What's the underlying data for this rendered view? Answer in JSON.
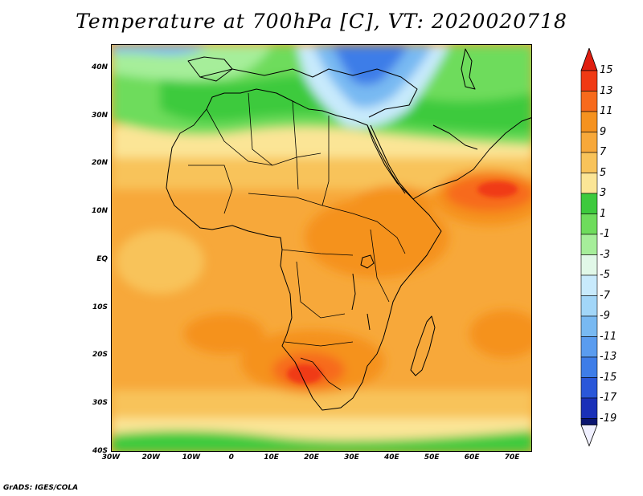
{
  "title": "Temperature at 700hPa [C], VT: 2020020718",
  "credit": "GrADS: IGES/COLA",
  "map": {
    "projection": "lat-lon",
    "lon_range": [
      -30,
      75
    ],
    "lat_range": [
      -40,
      45
    ],
    "lat_ticks": [
      {
        "value": 40,
        "label": "40N"
      },
      {
        "value": 30,
        "label": "30N"
      },
      {
        "value": 20,
        "label": "20N"
      },
      {
        "value": 10,
        "label": "10N"
      },
      {
        "value": 0,
        "label": "EQ"
      },
      {
        "value": -10,
        "label": "10S"
      },
      {
        "value": -20,
        "label": "20S"
      },
      {
        "value": -30,
        "label": "30S"
      },
      {
        "value": -40,
        "label": "40S"
      }
    ],
    "lon_ticks": [
      {
        "value": -30,
        "label": "30W"
      },
      {
        "value": -20,
        "label": "20W"
      },
      {
        "value": -10,
        "label": "10W"
      },
      {
        "value": 0,
        "label": "0"
      },
      {
        "value": 10,
        "label": "10E"
      },
      {
        "value": 20,
        "label": "20E"
      },
      {
        "value": 30,
        "label": "30E"
      },
      {
        "value": 40,
        "label": "40E"
      },
      {
        "value": 50,
        "label": "50E"
      },
      {
        "value": 60,
        "label": "60E"
      },
      {
        "value": 70,
        "label": "70E"
      }
    ]
  },
  "colorbar": {
    "labels": [
      "15",
      "13",
      "11",
      "9",
      "7",
      "5",
      "3",
      "1",
      "-1",
      "-3",
      "-5",
      "-7",
      "-9",
      "-11",
      "-13",
      "-15",
      "-17",
      "-19"
    ],
    "bins": [
      {
        "from": 13,
        "to": 15,
        "color": "#f03a14"
      },
      {
        "from": 11,
        "to": 13,
        "color": "#f76a1c"
      },
      {
        "from": 9,
        "to": 11,
        "color": "#f5921f"
      },
      {
        "from": 7,
        "to": 9,
        "color": "#f7a83a"
      },
      {
        "from": 5,
        "to": 7,
        "color": "#f8c35a"
      },
      {
        "from": 3,
        "to": 5,
        "color": "#fbe596"
      },
      {
        "from": 1,
        "to": 3,
        "color": "#3dca3d"
      },
      {
        "from": -1,
        "to": 1,
        "color": "#6edc5c"
      },
      {
        "from": -3,
        "to": -1,
        "color": "#a6ee9a"
      },
      {
        "from": -5,
        "to": -3,
        "color": "#e1f8e8"
      },
      {
        "from": -7,
        "to": -5,
        "color": "#c8eafc"
      },
      {
        "from": -9,
        "to": -7,
        "color": "#a2d6f8"
      },
      {
        "from": -11,
        "to": -9,
        "color": "#78b9f2"
      },
      {
        "from": -13,
        "to": -11,
        "color": "#5a9cef"
      },
      {
        "from": -15,
        "to": -13,
        "color": "#3e7de8"
      },
      {
        "from": -17,
        "to": -15,
        "color": "#2a57d9"
      },
      {
        "from": -19,
        "to": -17,
        "color": "#1a30b8"
      }
    ],
    "above_color": "#e01e10",
    "below_color": "#f0f0ff",
    "under_min_color": "#0a1470"
  }
}
